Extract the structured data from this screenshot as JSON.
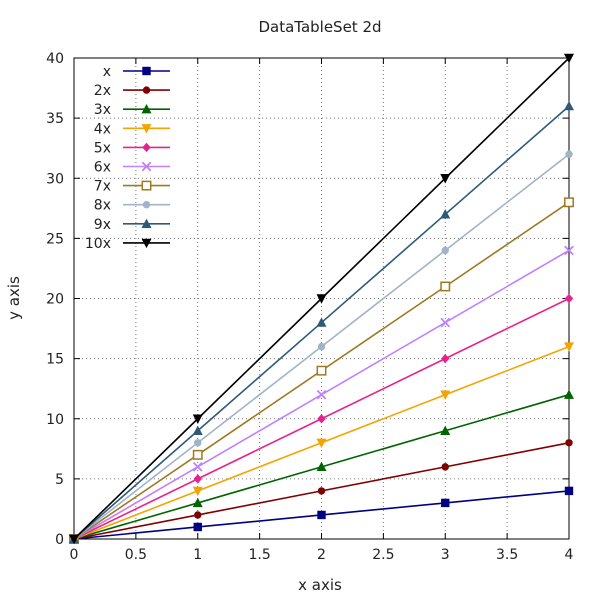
{
  "chart_data": {
    "type": "line",
    "title": "DataTableSet 2d",
    "xlabel": "x axis",
    "ylabel": "y axis",
    "xlim": [
      0,
      4
    ],
    "ylim": [
      0,
      40
    ],
    "xticks": [
      "0",
      "0.5",
      "1",
      "1.5",
      "2",
      "2.5",
      "3",
      "3.5",
      "4"
    ],
    "yticks": [
      "0",
      "5",
      "10",
      "15",
      "20",
      "25",
      "30",
      "35",
      "40"
    ],
    "grid": true,
    "legend_placement": "top-left",
    "x": [
      0,
      1,
      2,
      3,
      4
    ],
    "series": [
      {
        "name": "x",
        "values": [
          0,
          1,
          2,
          3,
          4
        ],
        "color": "#000080",
        "marker": "square"
      },
      {
        "name": "2x",
        "values": [
          0,
          2,
          4,
          6,
          8
        ],
        "color": "#800000",
        "marker": "circle"
      },
      {
        "name": "3x",
        "values": [
          0,
          3,
          6,
          9,
          12
        ],
        "color": "#006400",
        "marker": "triangle-up"
      },
      {
        "name": "4x",
        "values": [
          0,
          4,
          8,
          12,
          16
        ],
        "color": "#f5a300",
        "marker": "triangle-down"
      },
      {
        "name": "5x",
        "values": [
          0,
          5,
          10,
          15,
          20
        ],
        "color": "#e6238c",
        "marker": "diamond"
      },
      {
        "name": "6x",
        "values": [
          0,
          6,
          12,
          18,
          24
        ],
        "color": "#c080ff",
        "marker": "cross"
      },
      {
        "name": "7x",
        "values": [
          0,
          7,
          14,
          21,
          28
        ],
        "color": "#a07820",
        "marker": "square-open"
      },
      {
        "name": "8x",
        "values": [
          0,
          8,
          16,
          24,
          32
        ],
        "color": "#9fb4c8",
        "marker": "circle"
      },
      {
        "name": "9x",
        "values": [
          0,
          9,
          18,
          27,
          36
        ],
        "color": "#2e5a78",
        "marker": "triangle-up"
      },
      {
        "name": "10x",
        "values": [
          0,
          10,
          20,
          30,
          40
        ],
        "color": "#000000",
        "marker": "triangle-down"
      }
    ]
  }
}
